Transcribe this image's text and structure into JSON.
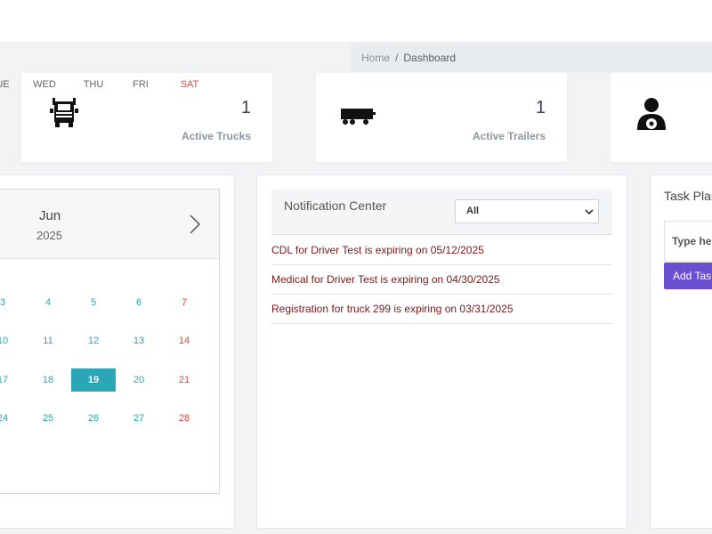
{
  "breadcrumb": {
    "home": "Home",
    "separator": "/",
    "current": "Dashboard"
  },
  "stats": [
    {
      "icon": "truck-icon",
      "count": "1",
      "label": "Active Trucks"
    },
    {
      "icon": "trailer-icon",
      "count": "1",
      "label": "Active Trailers"
    },
    {
      "icon": "driver-icon",
      "count": "",
      "label": ""
    }
  ],
  "calendar": {
    "month": "Jun",
    "year": "2025",
    "weekdays": [
      "UE",
      "WED",
      "THU",
      "FRI",
      "SAT"
    ],
    "weeks": [
      [
        "3",
        "4",
        "5",
        "6",
        "7"
      ],
      [
        "10",
        "11",
        "12",
        "13",
        "14"
      ],
      [
        "17",
        "18",
        "19",
        "20",
        "21"
      ],
      [
        "24",
        "25",
        "26",
        "27",
        "28"
      ]
    ],
    "today": "19"
  },
  "notifications": {
    "title": "Notification Center",
    "filter_value": "All",
    "items": [
      "CDL for Driver Test is expiring on 05/12/2025",
      "Medical for Driver Test is expiring on 04/30/2025",
      "Registration for truck 299 is expiring on 03/31/2025"
    ]
  },
  "tasks": {
    "title": "Task Plar",
    "input_placeholder": "Type he",
    "add_button": "Add Tas"
  },
  "colors": {
    "accent": "#2aa6b5",
    "weekend": "#e0443e",
    "alert_text": "#7a1a1a",
    "button": "#6a4fcf"
  }
}
